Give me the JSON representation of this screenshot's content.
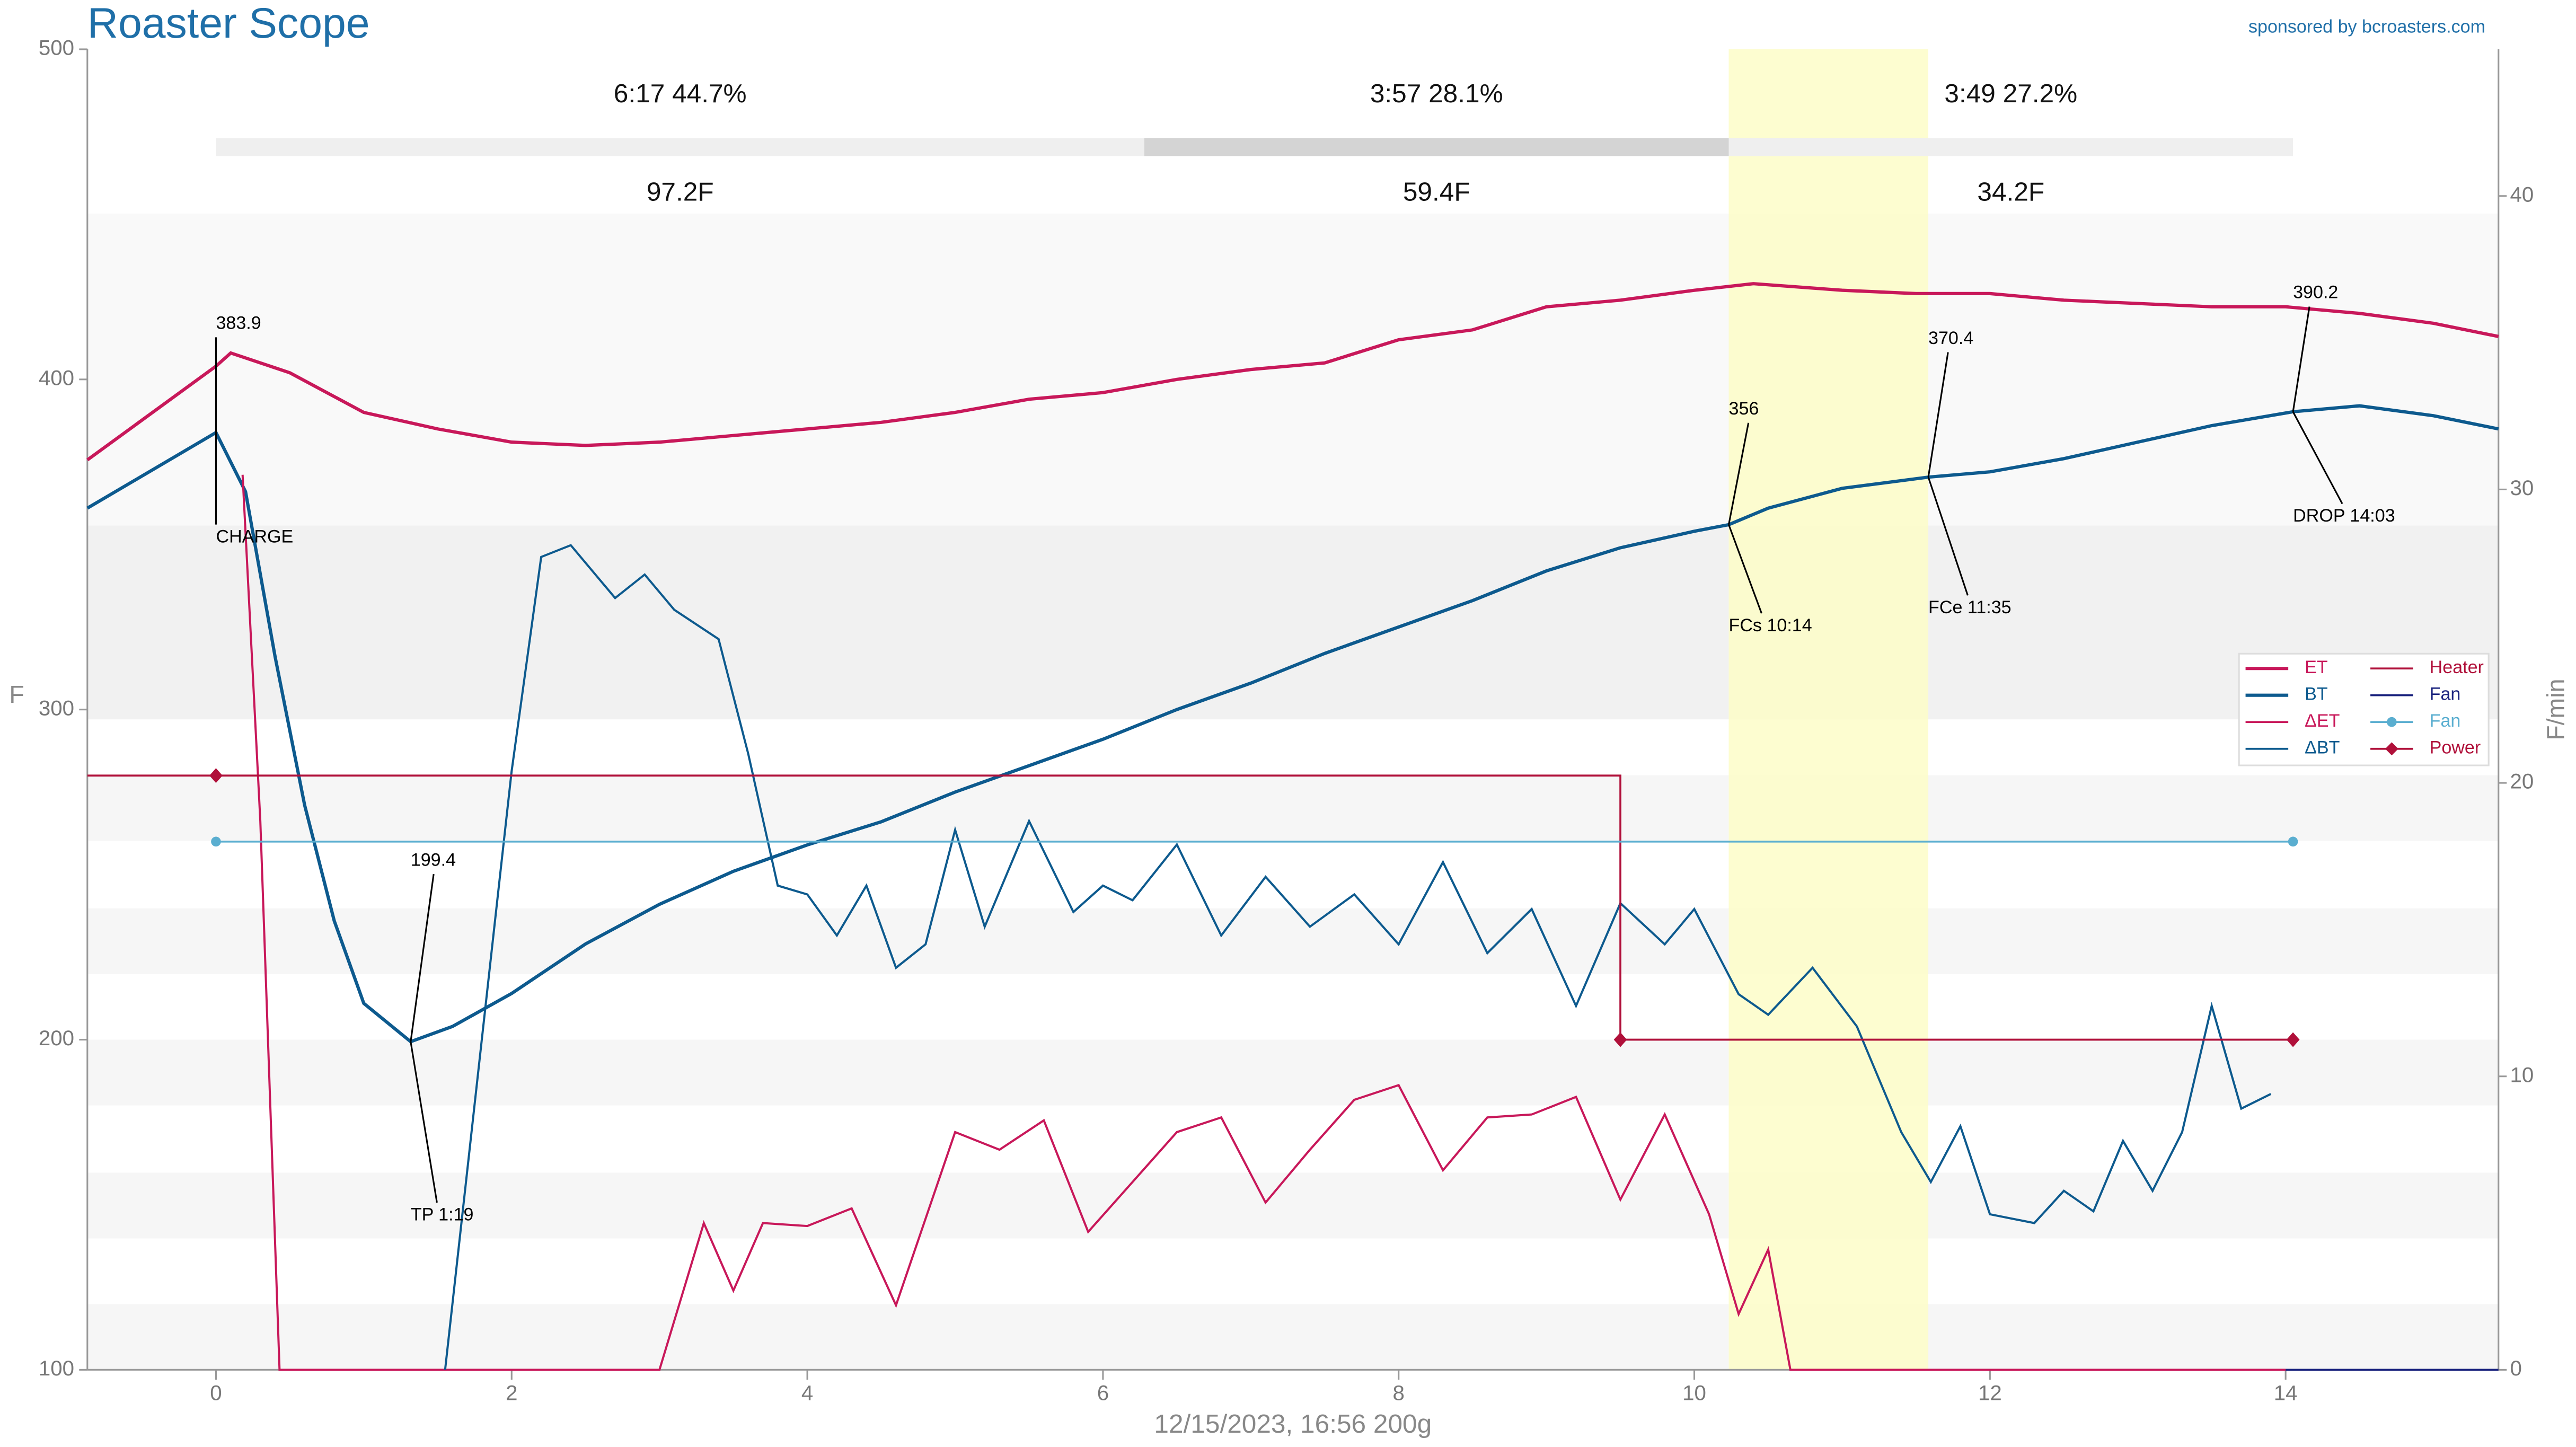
{
  "chart_data": {
    "type": "line",
    "title": "Roaster Scope",
    "sponsor": "sponsored by bcroasters.com",
    "xlabel": "12/15/2023, 16:56   200g",
    "ylabel": "F",
    "y2label": "F/min",
    "xlim": [
      -0.87,
      15.44
    ],
    "xticks": [
      0,
      2,
      4,
      6,
      8,
      10,
      12,
      14
    ],
    "ylim": [
      100,
      500
    ],
    "yticks": [
      100,
      200,
      300,
      400,
      500
    ],
    "y2lim": [
      0,
      45
    ],
    "y2ticks": [
      0,
      10,
      20,
      30,
      40
    ],
    "legend": "right",
    "series": [
      {
        "name": "ET",
        "color": "#c8185a",
        "width": 2,
        "x": [
          -0.87,
          0,
          0.1,
          0.5,
          1,
          1.5,
          2,
          2.5,
          3,
          3.5,
          4,
          4.5,
          5,
          5.5,
          6,
          6.5,
          7,
          7.5,
          8,
          8.5,
          9,
          9.5,
          10,
          10.4,
          11,
          11.5,
          12,
          12.5,
          13,
          13.5,
          14,
          14.5,
          15,
          15.44
        ],
        "values": [
          375.6,
          404,
          408,
          402,
          390,
          385,
          381,
          380,
          381,
          383,
          385,
          387,
          390,
          394,
          396,
          400,
          403,
          405,
          412,
          415,
          422,
          424,
          427,
          429,
          427,
          426,
          426,
          424,
          423,
          422,
          422,
          420,
          417,
          413
        ]
      },
      {
        "name": "BT",
        "color": "#0d5a8e",
        "width": 2,
        "x": [
          -0.87,
          0,
          0.2,
          0.4,
          0.6,
          0.8,
          1,
          1.317,
          1.6,
          2,
          2.5,
          3,
          3.5,
          4,
          4.5,
          5,
          5.5,
          6,
          6.5,
          7,
          7.5,
          8,
          8.5,
          9,
          9.5,
          10,
          10.233,
          10.5,
          11,
          11.583,
          12,
          12.5,
          13,
          13.5,
          14.05,
          14.5,
          15,
          15.44
        ],
        "values": [
          361,
          383.9,
          366,
          316,
          271,
          236,
          211,
          199.4,
          204,
          214,
          229,
          241,
          251,
          259,
          266,
          275,
          283,
          291,
          300,
          308,
          317,
          325,
          333,
          342,
          349,
          354,
          356.0,
          361,
          367,
          370.4,
          372,
          376,
          381,
          386,
          390.2,
          392,
          389,
          385
        ]
      },
      {
        "name": "ΔET",
        "color": "#c8185a",
        "width": 1.3,
        "axis": "y2",
        "x": [
          0.18,
          0.3,
          0.43,
          2.7,
          3,
          3.3,
          3.5,
          3.7,
          4,
          4.3,
          4.6,
          5,
          5.3,
          5.6,
          5.9,
          6.2,
          6.5,
          6.8,
          7.1,
          7.4,
          7.7,
          8,
          8.3,
          8.6,
          8.9,
          9.2,
          9.5,
          9.8,
          10.1,
          10.3,
          10.5,
          10.65,
          14
        ],
        "values": [
          30.5,
          18.7,
          0,
          0,
          0,
          5,
          2.7,
          5,
          4.9,
          5.5,
          2.2,
          8.1,
          7.5,
          8.5,
          4.7,
          6.4,
          8.1,
          8.6,
          5.7,
          7.5,
          9.2,
          9.7,
          6.8,
          8.6,
          8.7,
          9.3,
          5.8,
          8.7,
          5.3,
          1.9,
          4.1,
          0,
          0
        ]
      },
      {
        "name": "ΔBT",
        "color": "#0d5a8e",
        "width": 1.3,
        "axis": "y2",
        "x": [
          1.55,
          2,
          2.2,
          2.4,
          2.7,
          2.9,
          3.1,
          3.4,
          3.6,
          3.8,
          4,
          4.2,
          4.4,
          4.6,
          4.8,
          5,
          5.2,
          5.5,
          5.8,
          6,
          6.2,
          6.5,
          6.8,
          7.1,
          7.4,
          7.7,
          8,
          8.3,
          8.6,
          8.9,
          9.2,
          9.5,
          9.8,
          10,
          10.3,
          10.5,
          10.8,
          11.1,
          11.4,
          11.6,
          11.8,
          12,
          12.3,
          12.5,
          12.7,
          12.9,
          13.1,
          13.3,
          13.5,
          13.7,
          13.9
        ],
        "values": [
          0,
          20.4,
          27.7,
          28.1,
          26.3,
          27.1,
          25.9,
          24.9,
          21,
          16.5,
          16.2,
          14.8,
          16.5,
          13.7,
          14.5,
          18.4,
          15.1,
          18.7,
          15.6,
          16.5,
          16,
          17.9,
          14.8,
          16.8,
          15.1,
          16.2,
          14.5,
          17.3,
          14.2,
          15.7,
          12.4,
          15.9,
          14.5,
          15.7,
          12.8,
          12.1,
          13.7,
          11.7,
          8.1,
          6.4,
          8.3,
          5.3,
          5,
          6.1,
          5.4,
          7.8,
          6.1,
          8.1,
          12.4,
          8.9,
          9.4
        ]
      },
      {
        "name": "Heater",
        "color": "#b0103a",
        "width": 1.2,
        "step": true,
        "x": [
          -0.87,
          9.5,
          14.05
        ],
        "values": [
          280,
          200,
          200
        ]
      },
      {
        "name": "Fan",
        "color": "#1a237e",
        "width": 1.2,
        "x": [
          14,
          15.44
        ],
        "values": [
          100,
          100
        ]
      },
      {
        "name": "Fan",
        "color": "#5aaed0",
        "width": 1.2,
        "marker": "circle",
        "x": [
          0,
          14.05
        ],
        "values": [
          260,
          260
        ]
      },
      {
        "name": "Power",
        "color": "#b0103a",
        "width": 0,
        "marker": "diamond",
        "x": [
          0,
          9.5,
          14.05
        ],
        "values": [
          280,
          200,
          200
        ]
      }
    ],
    "events": [
      {
        "label": "CHARGE",
        "x": 0,
        "value": 383.9
      },
      {
        "label": "TP 1:19",
        "x": 1.317,
        "value": 199.4
      },
      {
        "label": "FCs 10:14",
        "x": 10.233,
        "value": 356.0
      },
      {
        "label": "FCe 11:35",
        "x": 11.583,
        "value": 370.4
      },
      {
        "label": "DROP 14:03",
        "x": 14.05,
        "value": 390.2
      }
    ],
    "phases": [
      {
        "time_label": "6:17  44.7%",
        "rise": "97.2F",
        "start": 0,
        "end": 6.28,
        "color": "#efefef"
      },
      {
        "time_label": "3:57  28.1%",
        "rise": "59.4F",
        "start": 6.28,
        "end": 10.233,
        "color": "#d4d4d4"
      },
      {
        "time_label": "3:49  27.2%",
        "rise": "34.2F",
        "start": 10.233,
        "end": 14.05,
        "color": "#efefef"
      }
    ],
    "highlight_color": "#fdfdc8"
  }
}
